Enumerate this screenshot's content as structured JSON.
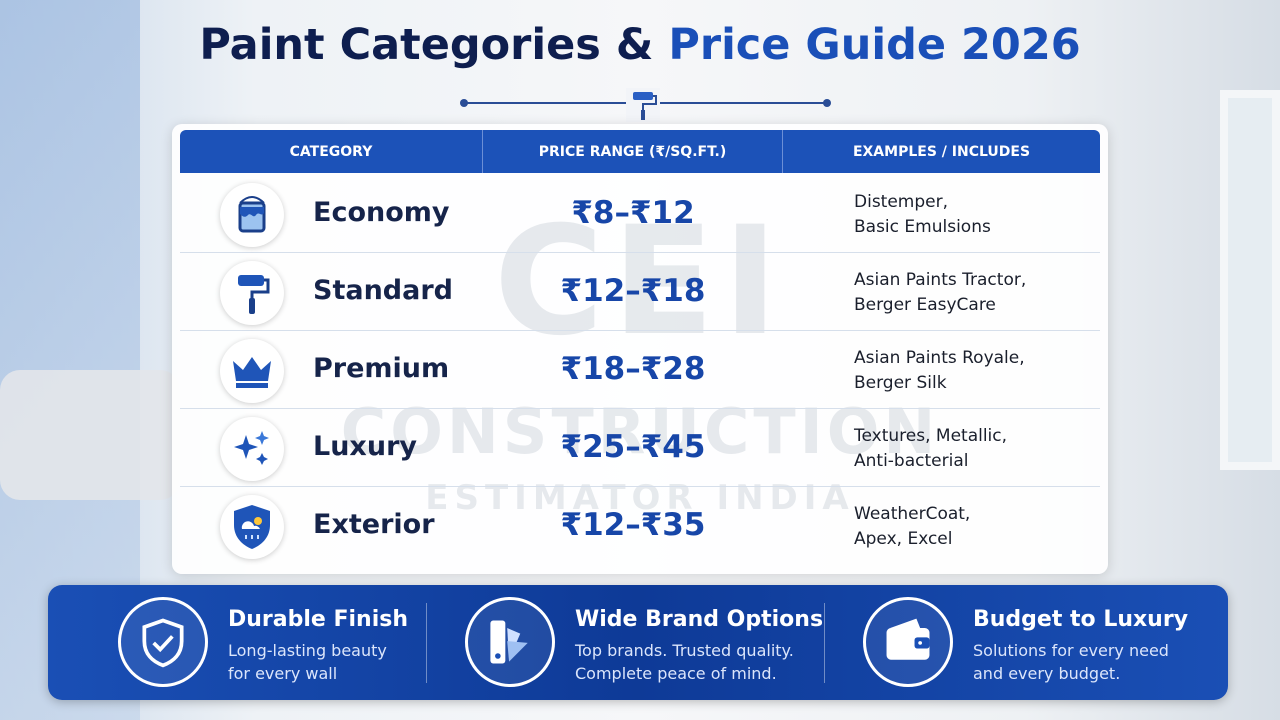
{
  "header": {
    "title_part1": "Paint Categories &",
    "title_part2": "Price Guide 2026"
  },
  "table": {
    "columns": [
      "CATEGORY",
      "PRICE RANGE (₹/SQ.FT.)",
      "EXAMPLES / INCLUDES"
    ],
    "rows": [
      {
        "category": "Economy",
        "price": "₹8–₹12",
        "examples": [
          "Distemper,",
          "Basic Emulsions"
        ]
      },
      {
        "category": "Standard",
        "price": "₹12–₹18",
        "examples": [
          "Asian Paints Tractor,",
          "Berger EasyCare"
        ]
      },
      {
        "category": "Premium",
        "price": "₹18–₹28",
        "examples": [
          "Asian Paints Royale,",
          "Berger Silk"
        ]
      },
      {
        "category": "Luxury",
        "price": "₹25–₹45",
        "examples": [
          "Textures, Metallic,",
          "Anti-bacterial"
        ]
      },
      {
        "category": "Exterior",
        "price": "₹12–₹35",
        "examples": [
          "WeatherCoat,",
          "Apex, Excel"
        ]
      }
    ]
  },
  "watermark": {
    "logo": "CEI",
    "line1": "CONSTRUCTION",
    "line2": "ESTIMATOR INDIA"
  },
  "features": [
    {
      "title": "Durable Finish",
      "lines": [
        "Long-lasting beauty",
        "for every wall"
      ]
    },
    {
      "title": "Wide Brand Options",
      "lines": [
        "Top brands. Trusted quality.",
        "Complete peace of mind."
      ]
    },
    {
      "title": "Budget to Luxury",
      "lines": [
        "Solutions for every need",
        "and every budget."
      ]
    }
  ]
}
